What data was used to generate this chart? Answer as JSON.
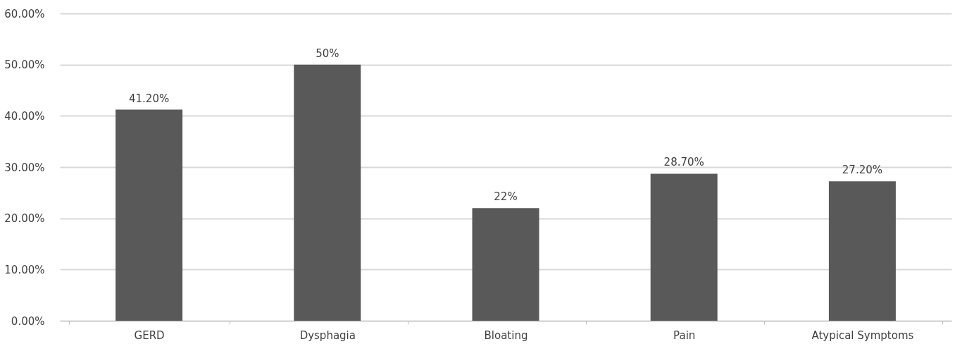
{
  "chart_data": {
    "type": "bar",
    "categories": [
      "GERD",
      "Dysphagia",
      "Bloating",
      "Pain",
      "Atypical Symptoms"
    ],
    "values": [
      41.2,
      50,
      22,
      28.7,
      27.2
    ],
    "value_labels": [
      "41.20%",
      "50%",
      "22%",
      "28.70%",
      "27.20%"
    ],
    "color": "#595959",
    "ylim": [
      0,
      60
    ],
    "yticks": [
      {
        "value": 0,
        "label": "0.00%"
      },
      {
        "value": 10,
        "label": "10.00%"
      },
      {
        "value": 20,
        "label": "20.00%"
      },
      {
        "value": 30,
        "label": "30.00%"
      },
      {
        "value": 40,
        "label": "40.00%"
      },
      {
        "value": 50,
        "label": "50.00%"
      },
      {
        "value": 60,
        "label": "60.00%"
      }
    ],
    "grid": "y"
  }
}
